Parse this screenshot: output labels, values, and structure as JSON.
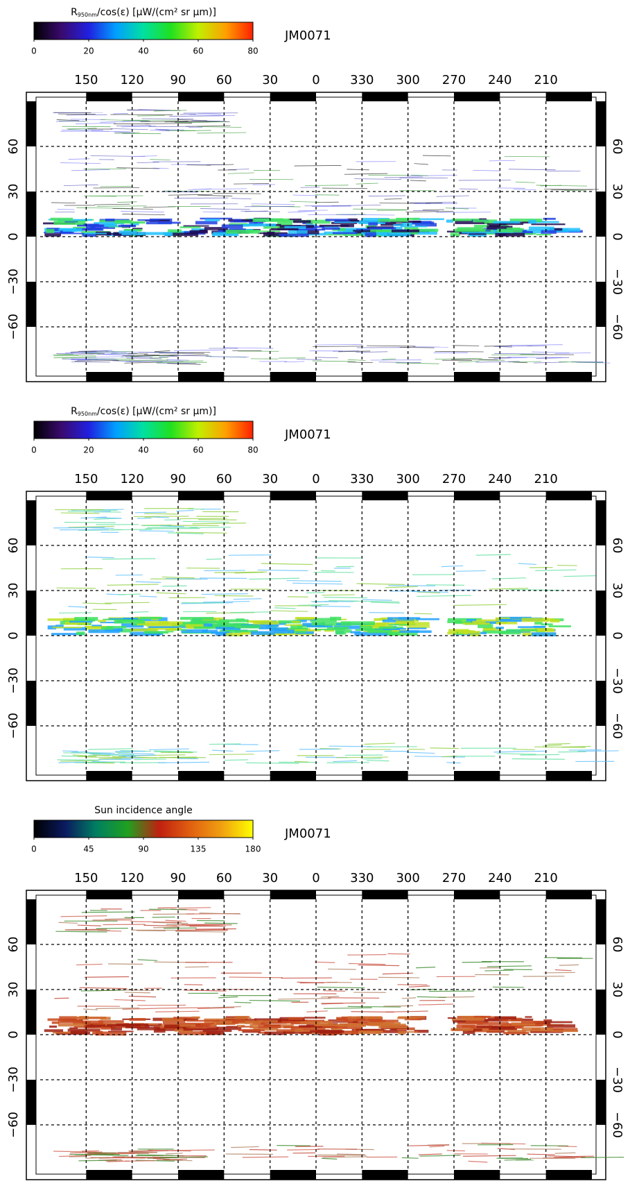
{
  "panels": [
    {
      "colorbar": {
        "title": [
          {
            "text": "R"
          },
          {
            "text": "950nm",
            "subscript": true
          },
          {
            "text": "/cos(ε) [μW/(cm² sr μm)]"
          }
        ],
        "ticks": [
          0,
          20,
          40,
          60,
          80
        ],
        "lim": [
          0,
          80
        ],
        "colormap": [
          "#000000",
          "#3a0a6e",
          "#2020e0",
          "#00a0ff",
          "#00e0a0",
          "#20e020",
          "#c0f000",
          "#ffa000",
          "#ff2000"
        ]
      },
      "label": "JM0071",
      "xlim": [
        180,
        -180
      ],
      "ylim": [
        -90,
        90
      ],
      "lon_ticks": [
        150,
        120,
        90,
        60,
        30,
        0,
        330,
        300,
        270,
        240,
        210
      ],
      "lat_ticks": [
        60,
        30,
        0,
        {
          "value": -30,
          "label": "−30"
        },
        {
          "value": -60,
          "label": "−60"
        }
      ]
    },
    {
      "colorbar": {
        "title": [
          {
            "text": "R"
          },
          {
            "text": "950nm",
            "subscript": true
          },
          {
            "text": "/cos(ε) [μW/(cm² sr μm)]"
          }
        ],
        "ticks": [
          0,
          20,
          40,
          60,
          80
        ],
        "lim": [
          0,
          80
        ],
        "colormap": [
          "#000000",
          "#3a0a6e",
          "#2020e0",
          "#00a0ff",
          "#00e0a0",
          "#20e020",
          "#c0f000",
          "#ffa000",
          "#ff2000"
        ]
      },
      "label": "JM0071",
      "xlim": [
        180,
        -180
      ],
      "ylim": [
        -90,
        90
      ],
      "lon_ticks": [
        150,
        120,
        90,
        60,
        30,
        0,
        330,
        300,
        270,
        240,
        210
      ],
      "lat_ticks": [
        60,
        30,
        0,
        {
          "value": -30,
          "label": "−30"
        },
        {
          "value": -60,
          "label": "−60"
        }
      ]
    },
    {
      "colorbar": {
        "title": [
          {
            "text": "Sun incidence angle"
          }
        ],
        "ticks": [
          0,
          45,
          90,
          135,
          180
        ],
        "lim": [
          0,
          180
        ],
        "colormap": [
          "#000000",
          "#0a1a60",
          "#008060",
          "#20a020",
          "#c02010",
          "#e06010",
          "#f0a010",
          "#ffff00"
        ]
      },
      "label": "JM0071",
      "xlim": [
        180,
        -180
      ],
      "ylim": [
        -90,
        90
      ],
      "lon_ticks": [
        150,
        120,
        90,
        60,
        30,
        0,
        330,
        300,
        270,
        240,
        210
      ],
      "lat_ticks": [
        60,
        30,
        0,
        {
          "value": -30,
          "label": "−30"
        },
        {
          "value": -60,
          "label": "−60"
        }
      ]
    }
  ]
}
